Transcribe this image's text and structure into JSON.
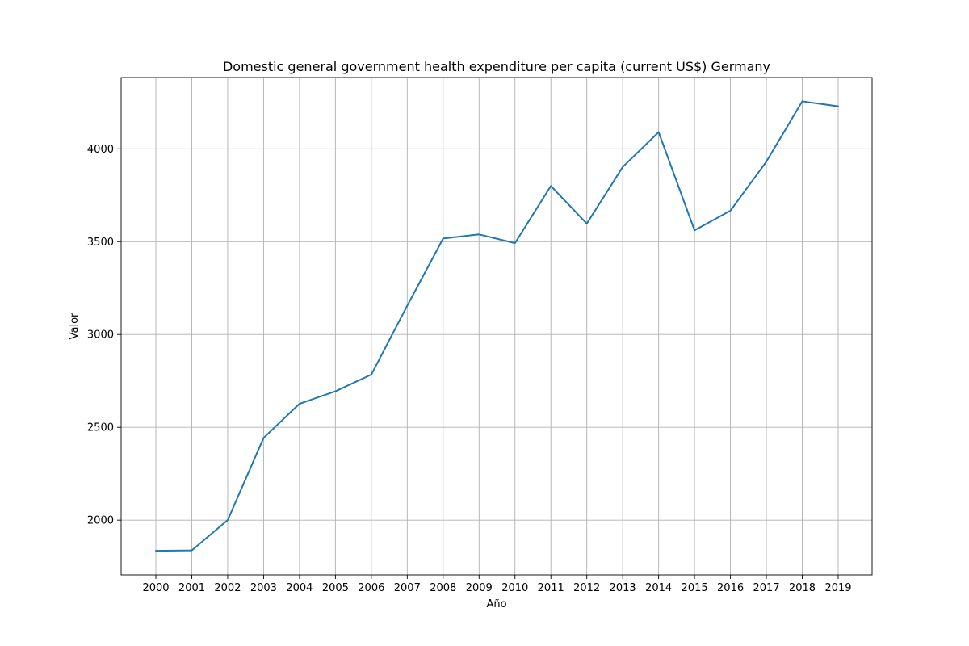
{
  "chart_data": {
    "type": "line",
    "title": "Domestic general government health expenditure per capita (current US$) Germany",
    "xlabel": "Año",
    "ylabel": "Valor",
    "categories": [
      "2000",
      "2001",
      "2002",
      "2003",
      "2004",
      "2005",
      "2006",
      "2007",
      "2008",
      "2009",
      "2010",
      "2011",
      "2012",
      "2013",
      "2014",
      "2015",
      "2016",
      "2017",
      "2018",
      "2019"
    ],
    "series": [
      {
        "color": "#1f77b4",
        "values": [
          1835,
          1837,
          2000,
          2443,
          2627,
          2694,
          2784,
          3155,
          3517,
          3539,
          3492,
          3800,
          3597,
          3902,
          4090,
          3561,
          3667,
          3931,
          4256,
          4229
        ]
      }
    ],
    "yticks": [
      2000,
      2500,
      3000,
      3500,
      4000
    ],
    "ylim": [
      1705,
      4384
    ],
    "grid": true,
    "legend": "none"
  }
}
